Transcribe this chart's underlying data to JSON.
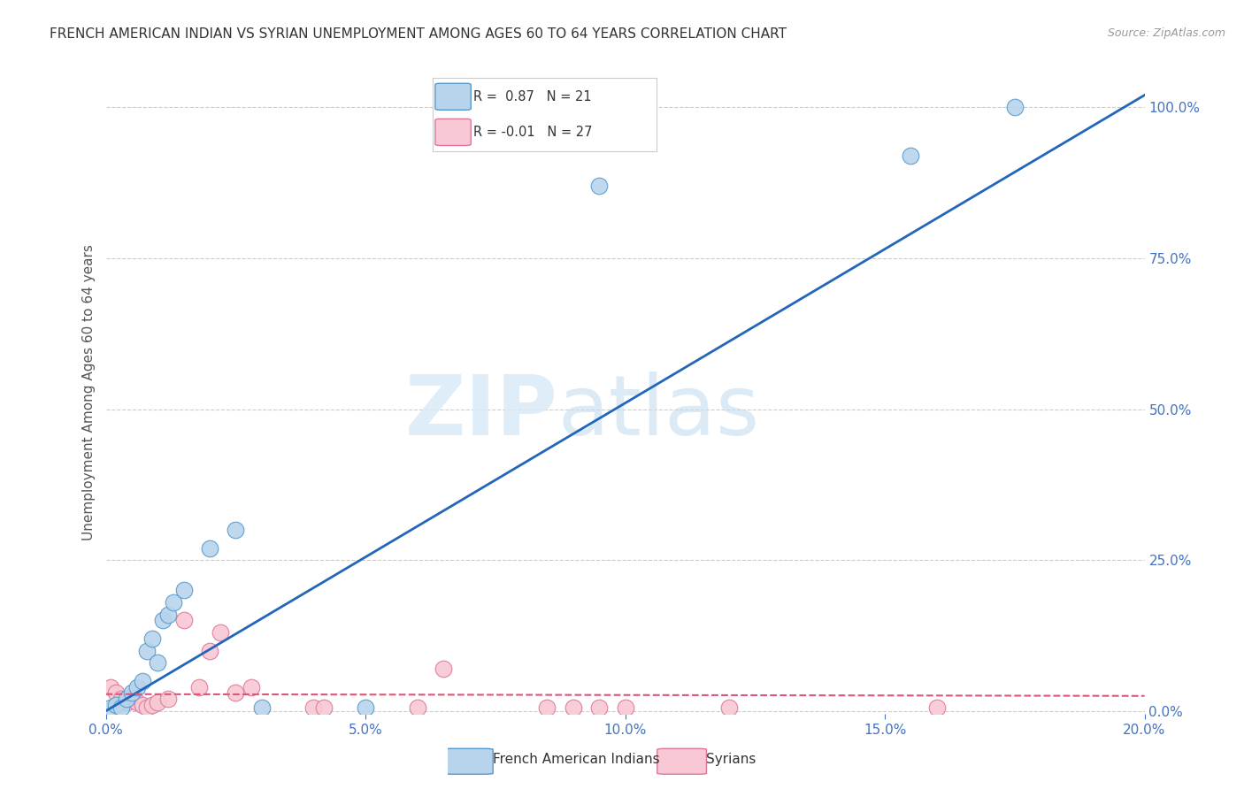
{
  "title": "FRENCH AMERICAN INDIAN VS SYRIAN UNEMPLOYMENT AMONG AGES 60 TO 64 YEARS CORRELATION CHART",
  "source": "Source: ZipAtlas.com",
  "ylabel": "Unemployment Among Ages 60 to 64 years",
  "R_blue": 0.87,
  "N_blue": 21,
  "R_pink": -0.01,
  "N_pink": 27,
  "blue_scatter_color": "#b8d4ec",
  "blue_edge_color": "#5599cc",
  "blue_line_color": "#2266bb",
  "pink_scatter_color": "#f8c8d4",
  "pink_edge_color": "#dd7799",
  "pink_line_color": "#dd5577",
  "legend_label_blue": "French American Indians",
  "legend_label_pink": "Syrians",
  "blue_x": [
    0.001,
    0.002,
    0.003,
    0.004,
    0.005,
    0.006,
    0.007,
    0.008,
    0.009,
    0.01,
    0.011,
    0.012,
    0.013,
    0.015,
    0.02,
    0.025,
    0.03,
    0.05,
    0.095,
    0.155,
    0.175
  ],
  "blue_y": [
    0.005,
    0.01,
    0.005,
    0.02,
    0.03,
    0.04,
    0.05,
    0.1,
    0.12,
    0.08,
    0.15,
    0.16,
    0.18,
    0.2,
    0.27,
    0.3,
    0.005,
    0.005,
    0.87,
    0.92,
    1.0
  ],
  "pink_x": [
    0.001,
    0.002,
    0.003,
    0.004,
    0.005,
    0.006,
    0.007,
    0.008,
    0.009,
    0.01,
    0.012,
    0.015,
    0.018,
    0.02,
    0.022,
    0.025,
    0.028,
    0.04,
    0.042,
    0.06,
    0.065,
    0.085,
    0.09,
    0.095,
    0.1,
    0.12,
    0.16
  ],
  "pink_y": [
    0.04,
    0.03,
    0.02,
    0.015,
    0.025,
    0.015,
    0.01,
    0.005,
    0.01,
    0.015,
    0.02,
    0.15,
    0.04,
    0.1,
    0.13,
    0.03,
    0.04,
    0.005,
    0.005,
    0.005,
    0.07,
    0.005,
    0.005,
    0.005,
    0.005,
    0.005,
    0.005
  ],
  "blue_line_x": [
    0.0,
    0.2
  ],
  "blue_line_y": [
    0.0,
    1.02
  ],
  "pink_line_y": [
    0.028,
    0.025
  ],
  "xmin": 0.0,
  "xmax": 0.2,
  "ymin": -0.005,
  "ymax": 1.06,
  "xticks": [
    0.0,
    0.05,
    0.1,
    0.15,
    0.2
  ],
  "xtick_labels": [
    "0.0%",
    "5.0%",
    "10.0%",
    "15.0%",
    "20.0%"
  ],
  "yticks_right": [
    0.0,
    0.25,
    0.5,
    0.75,
    1.0
  ],
  "ytick_labels_right": [
    "0.0%",
    "25.0%",
    "50.0%",
    "75.0%",
    "100.0%"
  ],
  "grid_color": "#cccccc",
  "bg_color": "#ffffff",
  "title_color": "#333333",
  "axis_tick_color": "#4472c4",
  "right_axis_color": "#4472c4"
}
